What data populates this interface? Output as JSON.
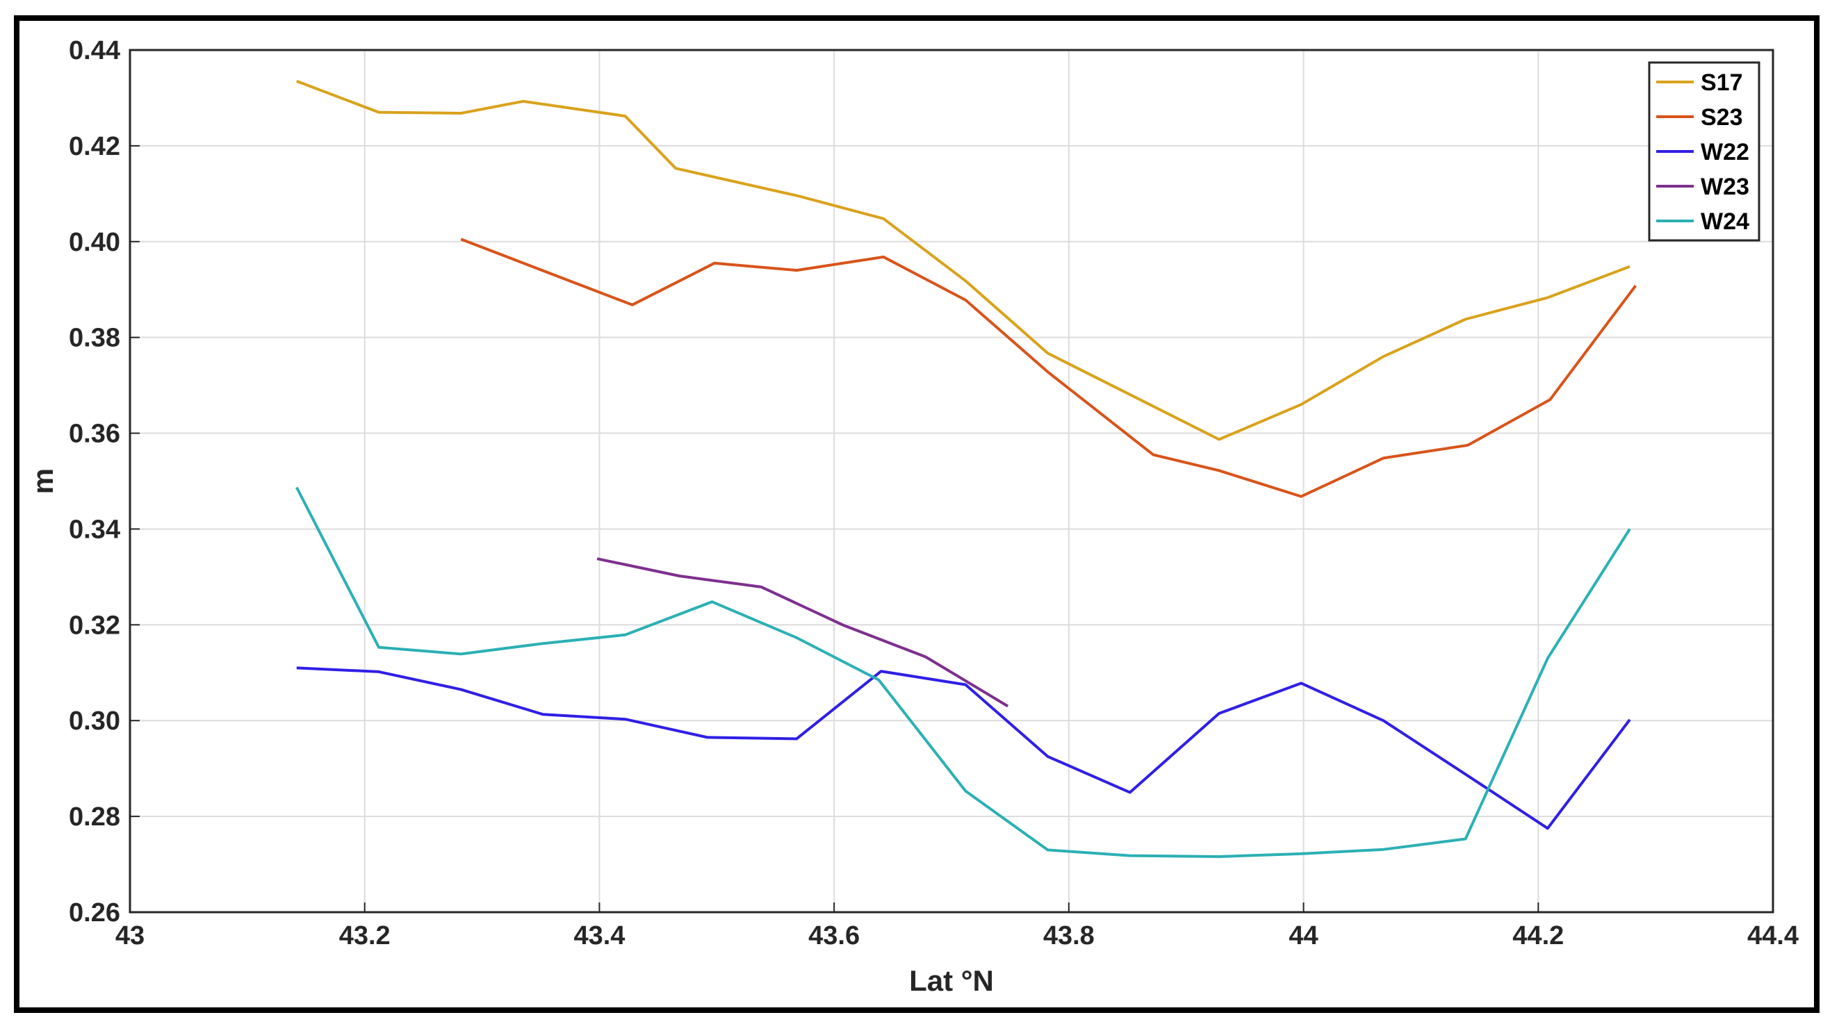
{
  "chart_data": {
    "type": "line",
    "xlabel": "Lat °N",
    "ylabel": "m",
    "xlim": [
      43,
      44.4
    ],
    "ylim": [
      0.26,
      0.44
    ],
    "x_ticks": [
      "43",
      "43.2",
      "43.4",
      "43.6",
      "43.8",
      "44",
      "44.2",
      "44.4"
    ],
    "y_ticks": [
      "0.26",
      "0.28",
      "0.30",
      "0.32",
      "0.34",
      "0.36",
      "0.38",
      "0.40",
      "0.42",
      "0.44"
    ],
    "grid": true,
    "legend_position": "top-right",
    "series": [
      {
        "name": "S17",
        "color": "#D9A21B",
        "x": [
          43.142,
          43.212,
          43.282,
          43.335,
          43.422,
          43.465,
          43.57,
          43.642,
          43.712,
          43.782,
          43.928,
          43.998,
          44.068,
          44.138,
          44.208,
          44.278
        ],
        "y": [
          0.4335,
          0.427,
          0.4268,
          0.4293,
          0.4262,
          0.4153,
          0.4095,
          0.4048,
          0.3918,
          0.3767,
          0.3587,
          0.366,
          0.376,
          0.3838,
          0.3883,
          0.3948
        ]
      },
      {
        "name": "S23",
        "color": "#D95319",
        "x": [
          43.282,
          43.428,
          43.498,
          43.568,
          43.642,
          43.712,
          43.782,
          43.872,
          43.928,
          43.998,
          44.068,
          44.14,
          44.21,
          44.283
        ],
        "y": [
          0.4005,
          0.3868,
          0.3955,
          0.394,
          0.3968,
          0.3878,
          0.3728,
          0.3555,
          0.3522,
          0.3468,
          0.3548,
          0.3575,
          0.367,
          0.3908
        ]
      },
      {
        "name": "W22",
        "color": "#2F1FE6",
        "x": [
          43.142,
          43.212,
          43.282,
          43.352,
          43.422,
          43.492,
          43.568,
          43.64,
          43.712,
          43.782,
          43.852,
          43.928,
          43.998,
          44.068,
          44.138,
          44.208,
          44.278
        ],
        "y": [
          0.311,
          0.3102,
          0.3065,
          0.3013,
          0.3003,
          0.2965,
          0.2962,
          0.3103,
          0.3075,
          0.2925,
          0.285,
          0.3015,
          0.3078,
          0.3,
          0.2888,
          0.2775,
          0.3002
        ]
      },
      {
        "name": "W23",
        "color": "#7E2F8E",
        "x": [
          43.398,
          43.468,
          43.538,
          43.608,
          43.678,
          43.748
        ],
        "y": [
          0.3338,
          0.3302,
          0.3279,
          0.3199,
          0.3133,
          0.303
        ]
      },
      {
        "name": "W24",
        "color": "#2BB0B5",
        "x": [
          43.142,
          43.212,
          43.282,
          43.352,
          43.422,
          43.496,
          43.568,
          43.638,
          43.712,
          43.782,
          43.852,
          43.928,
          43.998,
          44.068,
          44.138,
          44.208,
          44.278
        ],
        "y": [
          0.3487,
          0.3153,
          0.3139,
          0.3161,
          0.3179,
          0.3248,
          0.3173,
          0.3085,
          0.2853,
          0.273,
          0.2718,
          0.2716,
          0.2722,
          0.2731,
          0.2753,
          0.313,
          0.34
        ]
      }
    ]
  }
}
